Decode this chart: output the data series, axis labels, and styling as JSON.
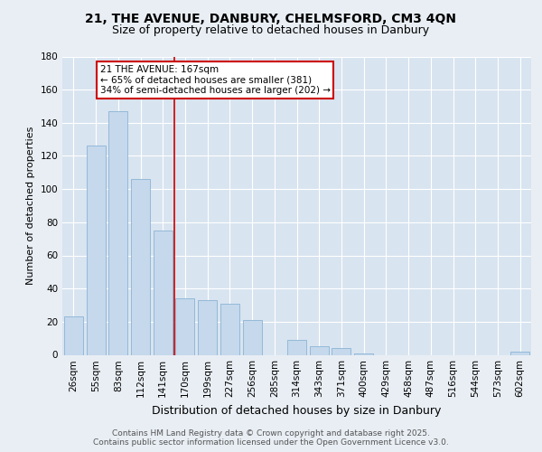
{
  "title1": "21, THE AVENUE, DANBURY, CHELMSFORD, CM3 4QN",
  "title2": "Size of property relative to detached houses in Danbury",
  "xlabel": "Distribution of detached houses by size in Danbury",
  "ylabel": "Number of detached properties",
  "bar_labels": [
    "26sqm",
    "55sqm",
    "83sqm",
    "112sqm",
    "141sqm",
    "170sqm",
    "199sqm",
    "227sqm",
    "256sqm",
    "285sqm",
    "314sqm",
    "343sqm",
    "371sqm",
    "400sqm",
    "429sqm",
    "458sqm",
    "487sqm",
    "516sqm",
    "544sqm",
    "573sqm",
    "602sqm"
  ],
  "bar_values": [
    23,
    126,
    147,
    106,
    75,
    34,
    33,
    31,
    21,
    0,
    9,
    5,
    4,
    1,
    0,
    0,
    0,
    0,
    0,
    0,
    2
  ],
  "bar_color": "#c5d8ec",
  "bar_edge_color": "#8ab4d4",
  "vline_color": "#cc0000",
  "vline_x_index": 4.5,
  "annotation_text": "21 THE AVENUE: 167sqm\n← 65% of detached houses are smaller (381)\n34% of semi-detached houses are larger (202) →",
  "annotation_box_color": "#ffffff",
  "annotation_box_edge": "#cc0000",
  "footer_text": "Contains HM Land Registry data © Crown copyright and database right 2025.\nContains public sector information licensed under the Open Government Licence v3.0.",
  "background_color": "#e8eef4",
  "plot_bg_color": "#d8e4f0",
  "ylim": [
    0,
    180
  ],
  "yticks": [
    0,
    20,
    40,
    60,
    80,
    100,
    120,
    140,
    160,
    180
  ],
  "title1_fontsize": 10,
  "title2_fontsize": 9,
  "ylabel_fontsize": 8,
  "xlabel_fontsize": 9,
  "tick_fontsize": 7.5,
  "footer_fontsize": 6.5
}
